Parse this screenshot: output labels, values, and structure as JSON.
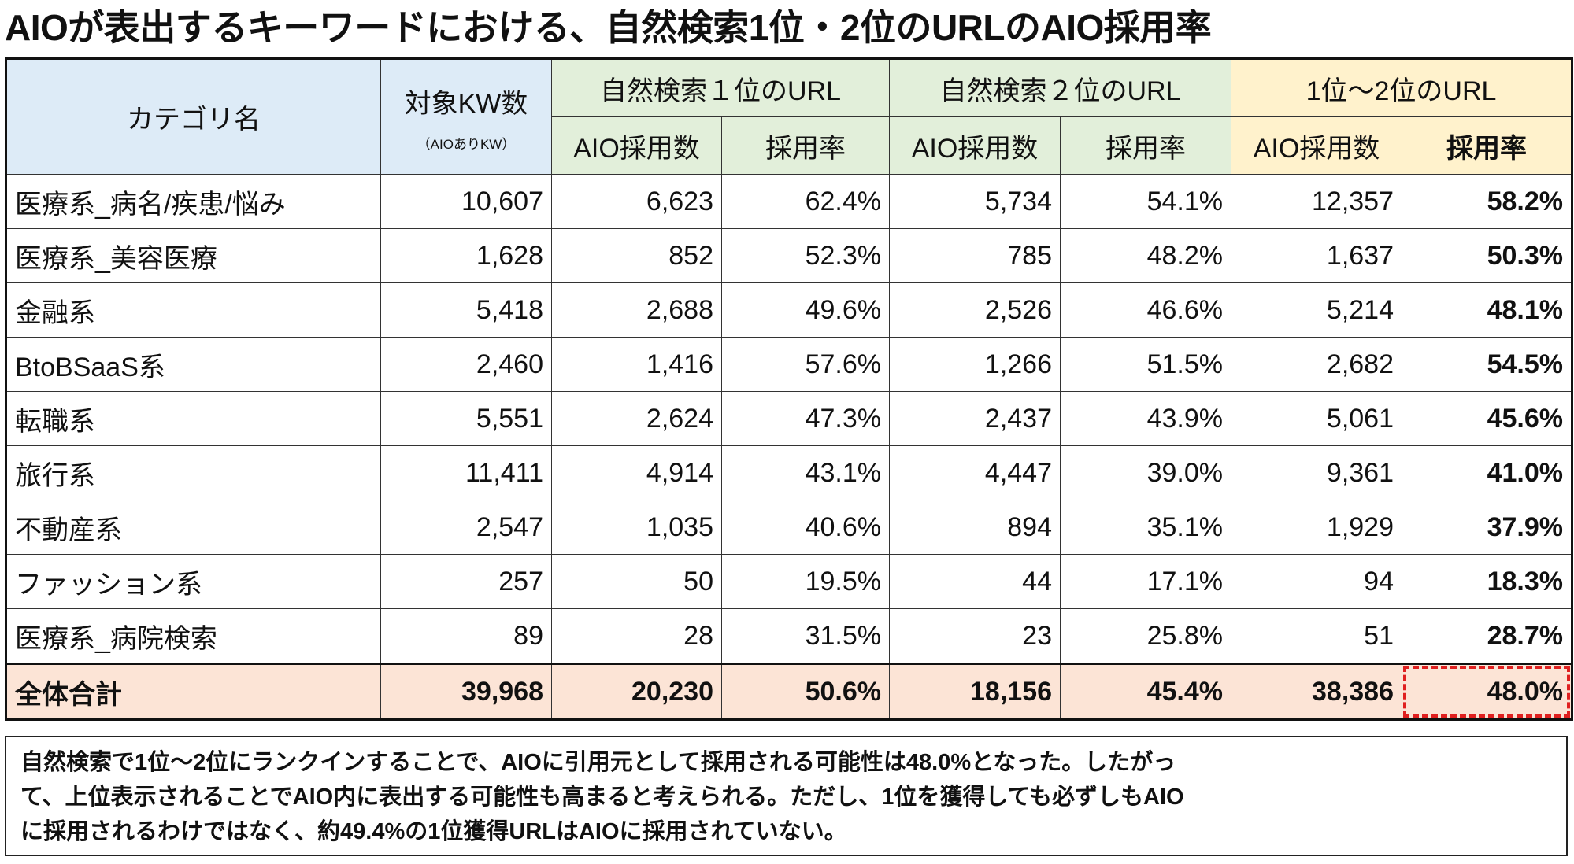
{
  "title": "AIOが表出するキーワードにおける、自然検索1位・2位のURLのAIO採用率",
  "colors": {
    "header_category": "#ddebf7",
    "header_rank": "#e2efda",
    "header_combined": "#fff2cc",
    "total_row": "#fce4d6",
    "highlight_border": "#e02020"
  },
  "header": {
    "category": "カテゴリ名",
    "kw_count": "対象KW数",
    "kw_count_sub": "（AIOありKW）",
    "group1": "自然検索１位のURL",
    "group2": "自然検索２位のURL",
    "group3": "1位～2位のURL",
    "adopt_count": "AIO採用数",
    "adopt_rate": "採用率"
  },
  "rows": [
    {
      "category": "医療系_病名/疾患/悩み",
      "kw": "10,607",
      "r1_count": "6,623",
      "r1_rate": "62.4%",
      "r2_count": "5,734",
      "r2_rate": "54.1%",
      "r12_count": "12,357",
      "r12_rate": "58.2%"
    },
    {
      "category": "医療系_美容医療",
      "kw": "1,628",
      "r1_count": "852",
      "r1_rate": "52.3%",
      "r2_count": "785",
      "r2_rate": "48.2%",
      "r12_count": "1,637",
      "r12_rate": "50.3%"
    },
    {
      "category": "金融系",
      "kw": "5,418",
      "r1_count": "2,688",
      "r1_rate": "49.6%",
      "r2_count": "2,526",
      "r2_rate": "46.6%",
      "r12_count": "5,214",
      "r12_rate": "48.1%"
    },
    {
      "category": "BtoBSaaS系",
      "kw": "2,460",
      "r1_count": "1,416",
      "r1_rate": "57.6%",
      "r2_count": "1,266",
      "r2_rate": "51.5%",
      "r12_count": "2,682",
      "r12_rate": "54.5%"
    },
    {
      "category": "転職系",
      "kw": "5,551",
      "r1_count": "2,624",
      "r1_rate": "47.3%",
      "r2_count": "2,437",
      "r2_rate": "43.9%",
      "r12_count": "5,061",
      "r12_rate": "45.6%"
    },
    {
      "category": "旅行系",
      "kw": "11,411",
      "r1_count": "4,914",
      "r1_rate": "43.1%",
      "r2_count": "4,447",
      "r2_rate": "39.0%",
      "r12_count": "9,361",
      "r12_rate": "41.0%"
    },
    {
      "category": "不動産系",
      "kw": "2,547",
      "r1_count": "1,035",
      "r1_rate": "40.6%",
      "r2_count": "894",
      "r2_rate": "35.1%",
      "r12_count": "1,929",
      "r12_rate": "37.9%"
    },
    {
      "category": "ファッション系",
      "kw": "257",
      "r1_count": "50",
      "r1_rate": "19.5%",
      "r2_count": "44",
      "r2_rate": "17.1%",
      "r12_count": "94",
      "r12_rate": "18.3%"
    },
    {
      "category": "医療系_病院検索",
      "kw": "89",
      "r1_count": "28",
      "r1_rate": "31.5%",
      "r2_count": "23",
      "r2_rate": "25.8%",
      "r12_count": "51",
      "r12_rate": "28.7%"
    }
  ],
  "total": {
    "category": "全体合計",
    "kw": "39,968",
    "r1_count": "20,230",
    "r1_rate": "50.6%",
    "r2_count": "18,156",
    "r2_rate": "45.4%",
    "r12_count": "38,386",
    "r12_rate": "48.0%"
  },
  "note": {
    "lines": [
      "自然検索で1位～2位にランクインすることで、AIOに引用元として採用される可能性は48.0%となった。したがっ",
      "て、上位表示されることでAIO内に表出する可能性も高まると考えられる。ただし、1位を獲得しても必ずしもAIO",
      "に採用されるわけではなく、約49.4%の1位獲得URLはAIOに採用されていない。"
    ]
  }
}
